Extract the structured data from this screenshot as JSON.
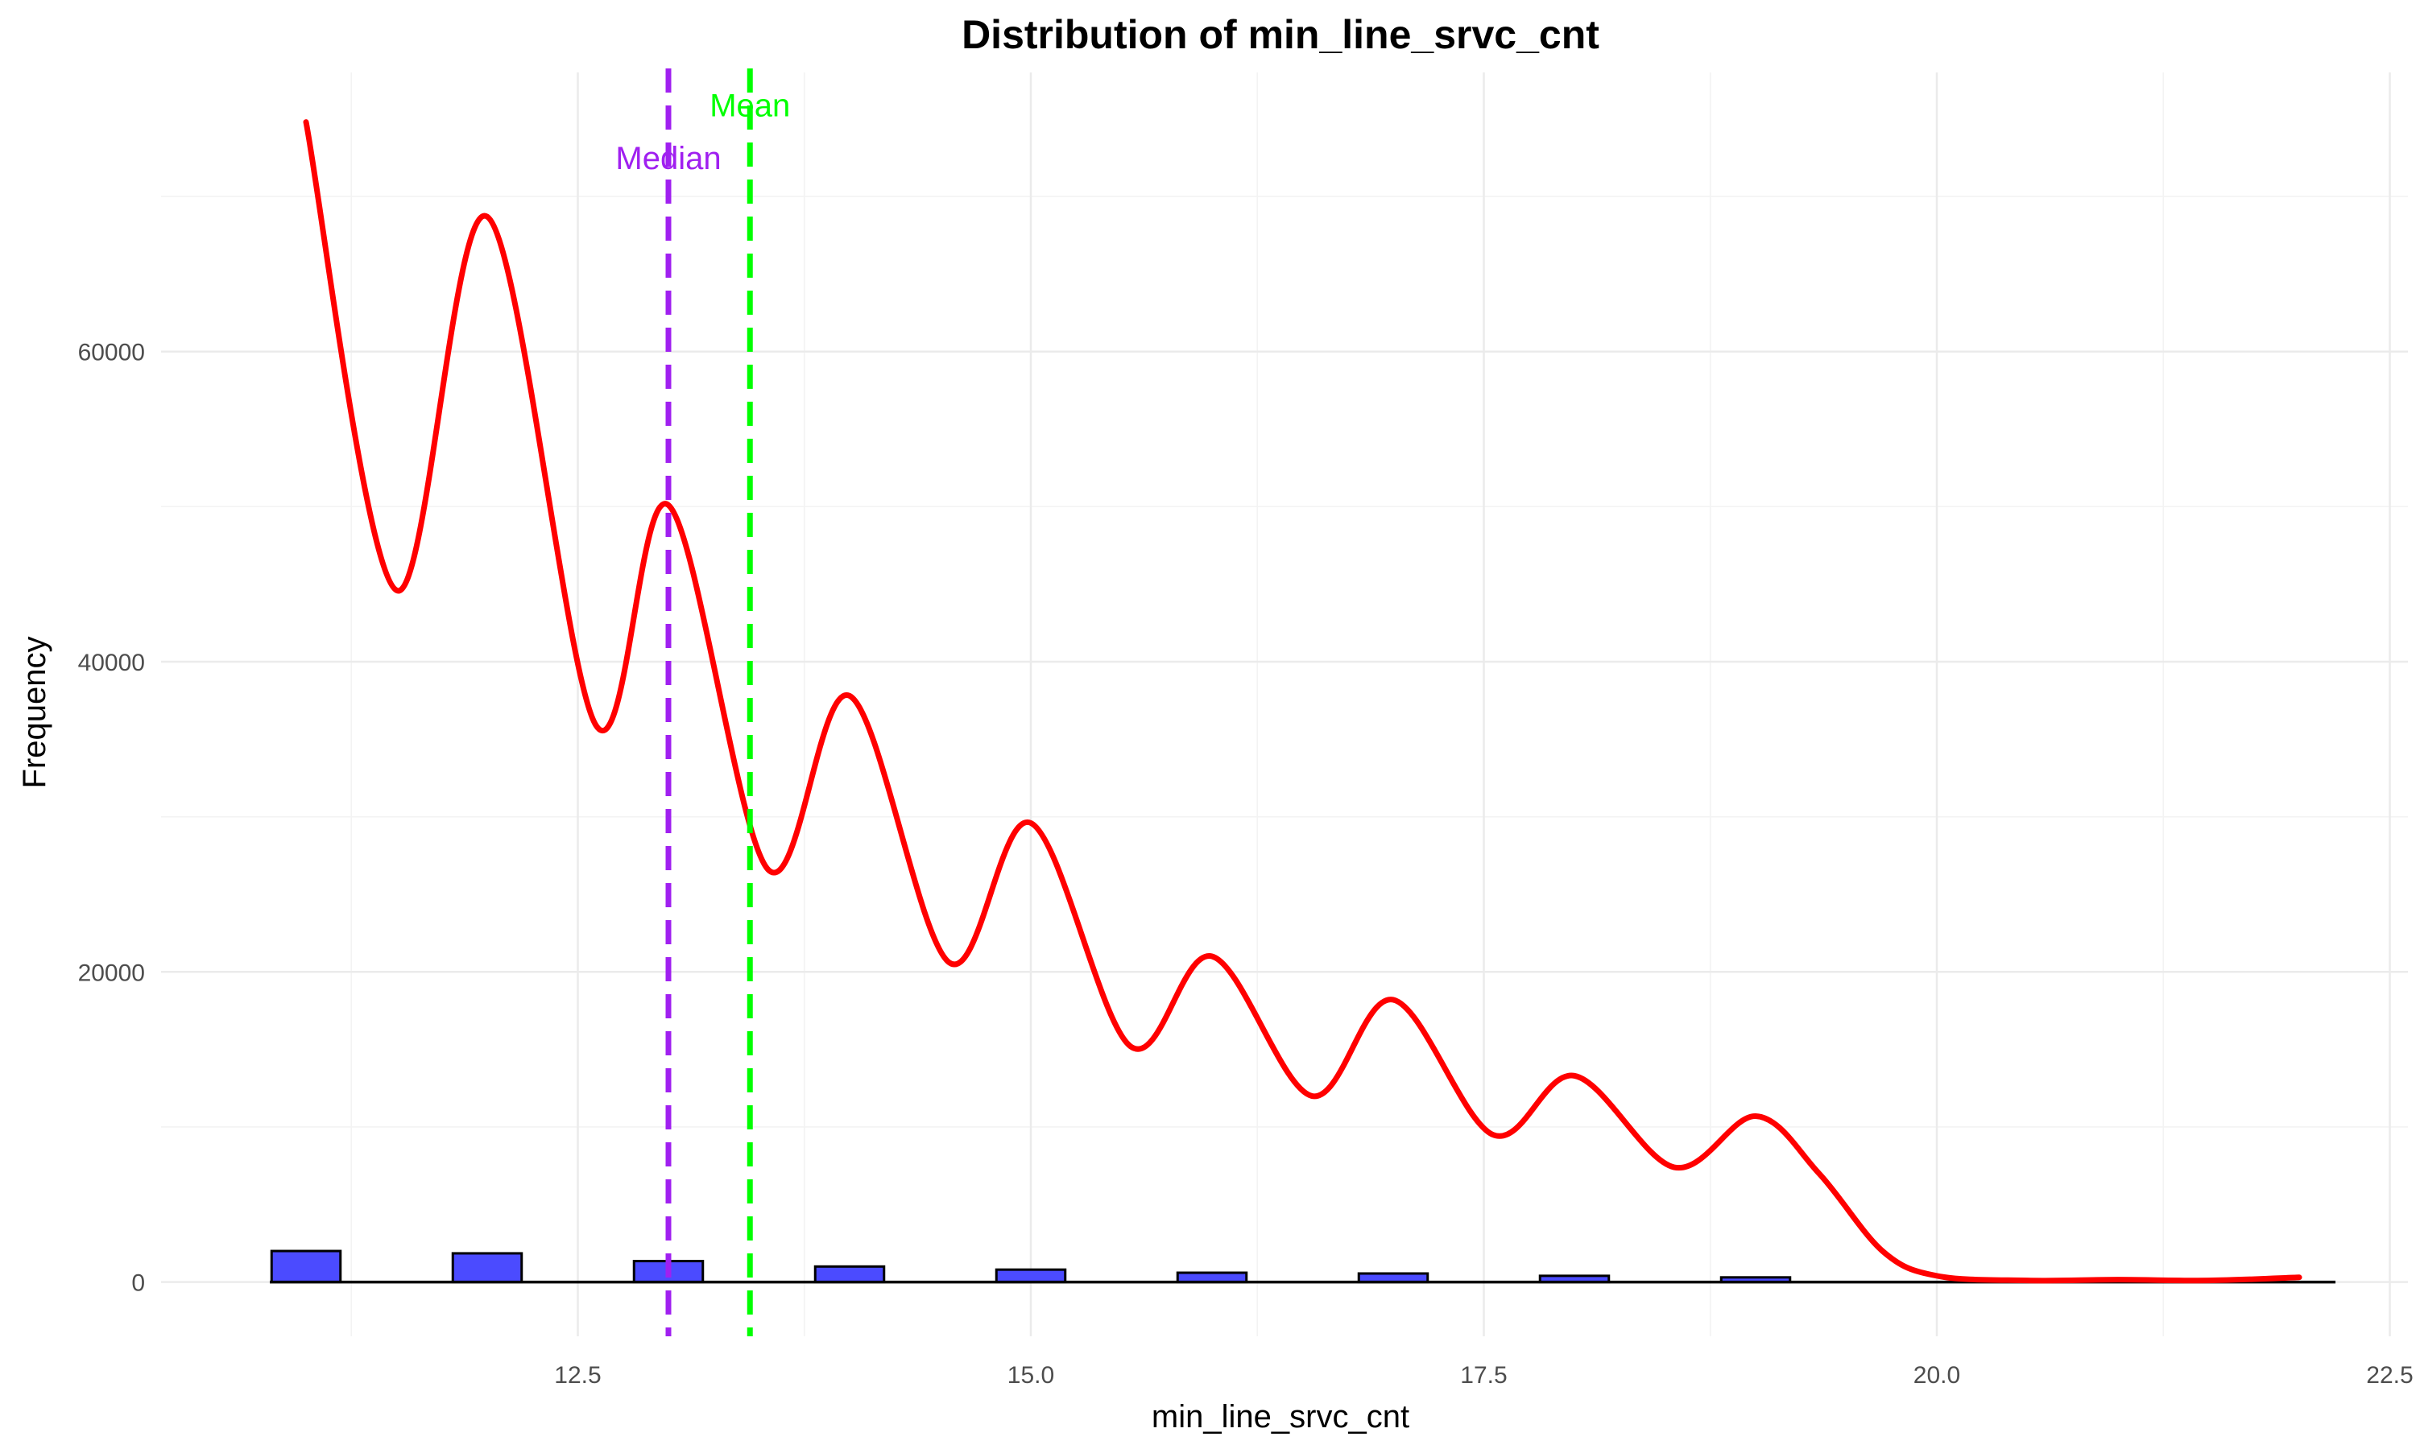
{
  "chart_data": {
    "type": "histogram",
    "title": "Distribution of min_line_srvc_cnt",
    "xlabel": "min_line_srvc_cnt",
    "ylabel": "Frequency",
    "xlim": [
      10.2,
      22.6
    ],
    "ylim": [
      -3500,
      78000
    ],
    "x_ticks": [
      12.5,
      15.0,
      17.5,
      20.0,
      22.5
    ],
    "x_tick_labels": [
      "12.5",
      "15.0",
      "17.5",
      "20.0",
      "22.5"
    ],
    "y_ticks": [
      0,
      20000,
      40000,
      60000
    ],
    "y_tick_labels": [
      "0",
      "20000",
      "40000",
      "60000"
    ],
    "grid": true,
    "histogram": {
      "fill": "#4b4bff",
      "edge": "#000000",
      "bin_width": 0.38,
      "bins": [
        {
          "x": 11,
          "count": 2000
        },
        {
          "x": 12,
          "count": 1850
        },
        {
          "x": 13,
          "count": 1350
        },
        {
          "x": 14,
          "count": 1000
        },
        {
          "x": 15,
          "count": 800
        },
        {
          "x": 16,
          "count": 600
        },
        {
          "x": 17,
          "count": 550
        },
        {
          "x": 18,
          "count": 400
        },
        {
          "x": 19,
          "count": 300
        }
      ]
    },
    "baseline": {
      "from": 10.8,
      "to": 22.2,
      "color": "#000000"
    },
    "density_curve": {
      "color": "#ff0000",
      "points": [
        [
          11.0,
          74800
        ],
        [
          11.5,
          44600
        ],
        [
          12.0,
          68700
        ],
        [
          12.6,
          35900
        ],
        [
          13.0,
          50100
        ],
        [
          13.55,
          26600
        ],
        [
          14.0,
          37800
        ],
        [
          14.55,
          20600
        ],
        [
          15.0,
          29600
        ],
        [
          15.55,
          15200
        ],
        [
          16.0,
          21000
        ],
        [
          16.55,
          12000
        ],
        [
          17.0,
          18200
        ],
        [
          17.55,
          9500
        ],
        [
          18.0,
          13300
        ],
        [
          18.55,
          7400
        ],
        [
          19.0,
          10700
        ],
        [
          19.35,
          7000
        ],
        [
          19.7,
          2000
        ],
        [
          20.0,
          400
        ],
        [
          20.5,
          100
        ],
        [
          21.0,
          150
        ],
        [
          21.5,
          100
        ],
        [
          22.0,
          300
        ]
      ]
    },
    "reference_lines": [
      {
        "name": "Median",
        "x": 13.0,
        "color": "#a020f0",
        "label_y": 72500
      },
      {
        "name": "Mean",
        "x": 13.45,
        "color": "#00ff00",
        "label_y": 75900
      }
    ]
  }
}
